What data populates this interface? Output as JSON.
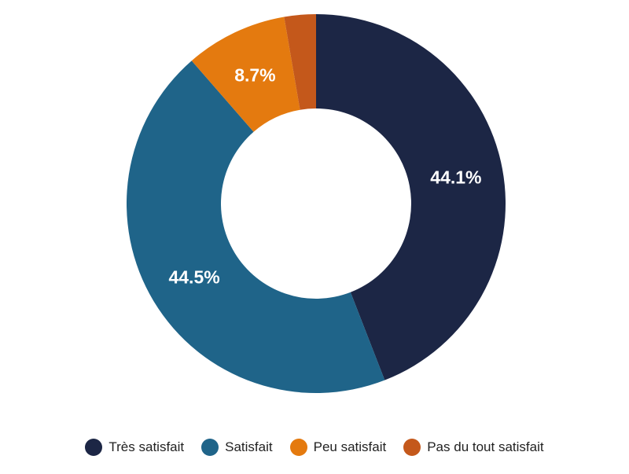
{
  "chart_data": {
    "type": "pie",
    "donut": true,
    "categories": [
      "Très satisfait",
      "Satisfait",
      "Peu satisfait",
      "Pas du tout satisfait"
    ],
    "values": [
      44.1,
      44.5,
      8.7,
      2.7
    ],
    "labels": [
      "44.1%",
      "44.5%",
      "8.7%",
      ""
    ],
    "colors": [
      "#1c2645",
      "#1f6489",
      "#e47a0f",
      "#c4581b"
    ],
    "legend_position": "bottom"
  }
}
